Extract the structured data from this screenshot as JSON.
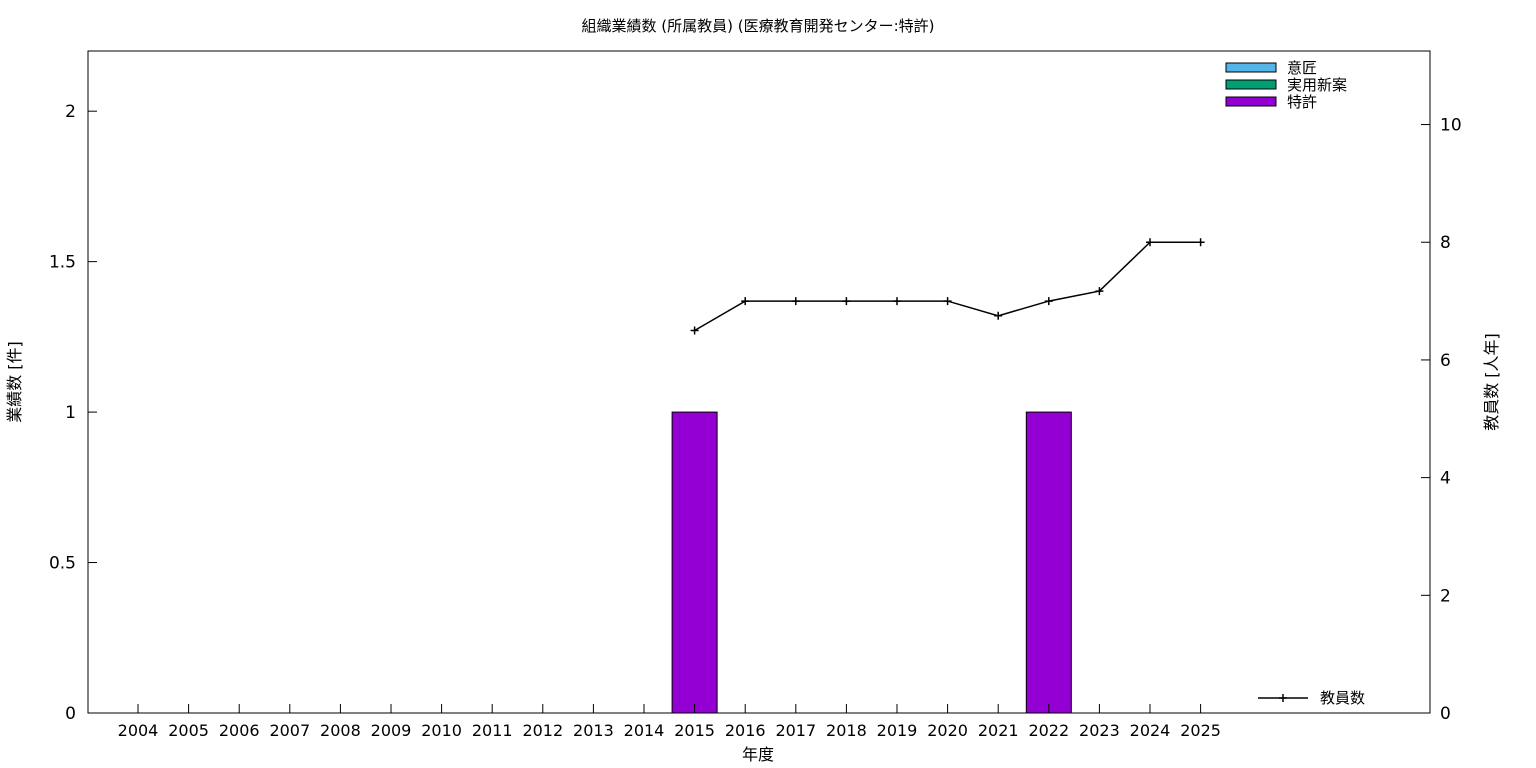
{
  "chart_data": {
    "type": "bar",
    "title": "組織業績数 (所属教員) (医療教育開発センター:特許)",
    "xlabel": "年度",
    "ylabel": "業績数 [件]",
    "y2label": "教員数 [人年]",
    "categories": [
      "2004",
      "2005",
      "2006",
      "2007",
      "2008",
      "2009",
      "2010",
      "2011",
      "2012",
      "2013",
      "2014",
      "2015",
      "2016",
      "2017",
      "2018",
      "2019",
      "2020",
      "2021",
      "2022",
      "2023",
      "2024",
      "2025"
    ],
    "ylim": [
      0,
      2.2
    ],
    "y2lim": [
      0,
      11.25
    ],
    "yticks": [
      0,
      0.5,
      1,
      1.5,
      2
    ],
    "y2ticks": [
      0,
      2,
      4,
      6,
      8,
      10
    ],
    "grid": false,
    "legend_position": "top-right",
    "series": [
      {
        "name": "意匠",
        "type": "bar",
        "axis": "left",
        "color": "#56b4e9",
        "values": [
          0,
          0,
          0,
          0,
          0,
          0,
          0,
          0,
          0,
          0,
          0,
          0,
          0,
          0,
          0,
          0,
          0,
          0,
          0,
          0,
          0,
          0
        ]
      },
      {
        "name": "実用新案",
        "type": "bar",
        "axis": "left",
        "color": "#009e73",
        "values": [
          0,
          0,
          0,
          0,
          0,
          0,
          0,
          0,
          0,
          0,
          0,
          0,
          0,
          0,
          0,
          0,
          0,
          0,
          0,
          0,
          0,
          0
        ]
      },
      {
        "name": "特許",
        "type": "bar",
        "axis": "left",
        "color": "#9400d3",
        "values": [
          0,
          0,
          0,
          0,
          0,
          0,
          0,
          0,
          0,
          0,
          0,
          1,
          0,
          0,
          0,
          0,
          0,
          0,
          1,
          0,
          0,
          0
        ]
      },
      {
        "name": "教員数",
        "type": "line",
        "axis": "right",
        "color": "#000000",
        "values": [
          null,
          null,
          null,
          null,
          null,
          null,
          null,
          null,
          null,
          null,
          null,
          6.5,
          7,
          7,
          7,
          7,
          7,
          6.75,
          7,
          7.17,
          8,
          8
        ]
      }
    ]
  }
}
